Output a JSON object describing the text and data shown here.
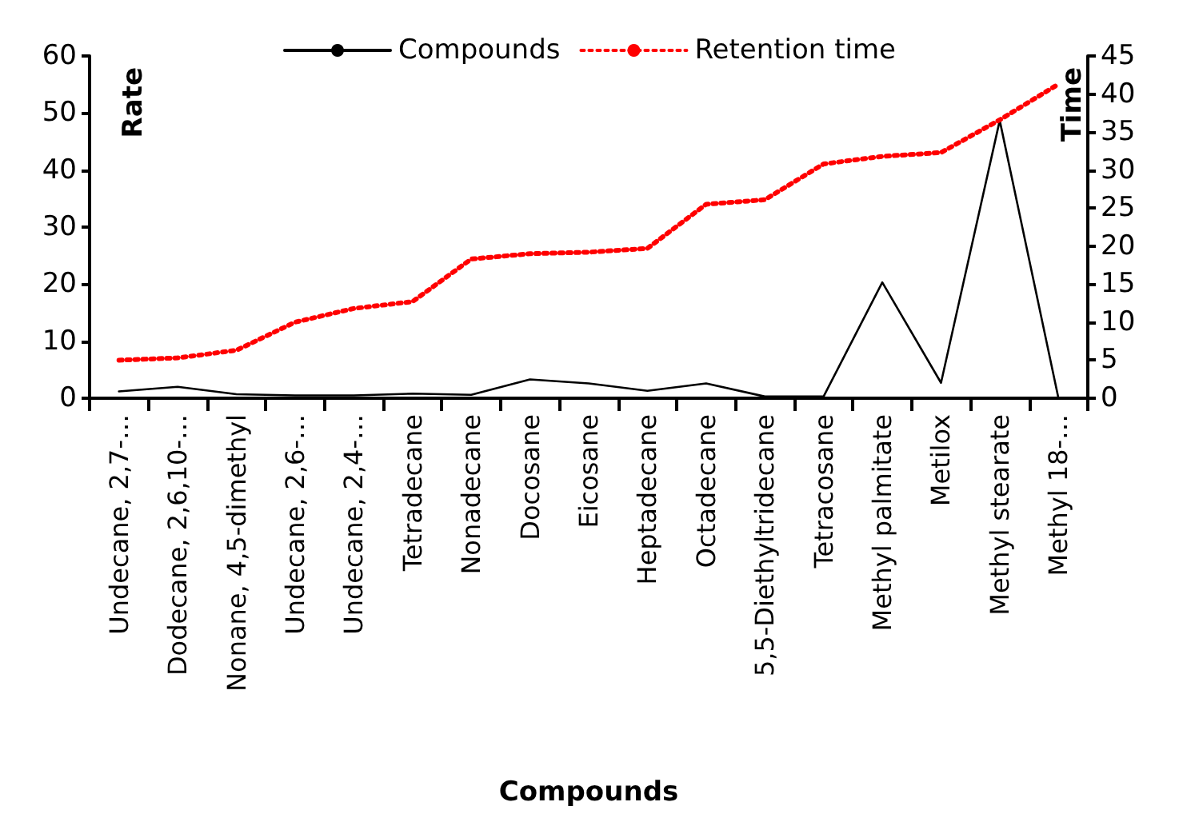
{
  "chart_data": {
    "type": "line",
    "xlabel": "Compounds",
    "ylabel": "Rate",
    "y2label": "Time",
    "categories": [
      "Undecane, 2,7-…",
      "Dodecane, 2,6,10-…",
      "Nonane, 4,5-dimethyl",
      "Undecane, 2,6-…",
      "Undecane, 2,4-…",
      "Tetradecane",
      "Nonadecane",
      "Docosane",
      "Eicosane",
      "Heptadecane",
      "Octadecane",
      "5,5-Diethyltridecane",
      "Tetracosane",
      "Methyl palmitate",
      "Metilox",
      "Methyl stearate",
      "Methyl 18-…"
    ],
    "series": [
      {
        "name": "Compounds",
        "color": "#000000",
        "line_style": "solid",
        "values": [
          1.2,
          2.0,
          0.7,
          0.5,
          0.5,
          0.8,
          0.6,
          3.3,
          2.6,
          1.3,
          2.6,
          0.3,
          0.3,
          20.3,
          2.7,
          48.7,
          0
        ]
      },
      {
        "name": "Retention time",
        "color": "#ff0000",
        "line_style": "dotted",
        "axis": "y2",
        "values": [
          5.0,
          5.3,
          6.3,
          10.0,
          11.8,
          12.7,
          18.3,
          19.0,
          19.2,
          19.7,
          25.5,
          26.1,
          30.8,
          31.8,
          32.3,
          36.6,
          41.3
        ]
      }
    ],
    "ylim": [
      0,
      60
    ],
    "yticks": [
      0,
      10,
      20,
      30,
      40,
      50,
      60
    ],
    "y2lim": [
      0,
      45
    ],
    "y2ticks": [
      0,
      5,
      10,
      15,
      20,
      25,
      30,
      35,
      40,
      45
    ],
    "grid": false,
    "legend": "top",
    "marker": "none"
  }
}
